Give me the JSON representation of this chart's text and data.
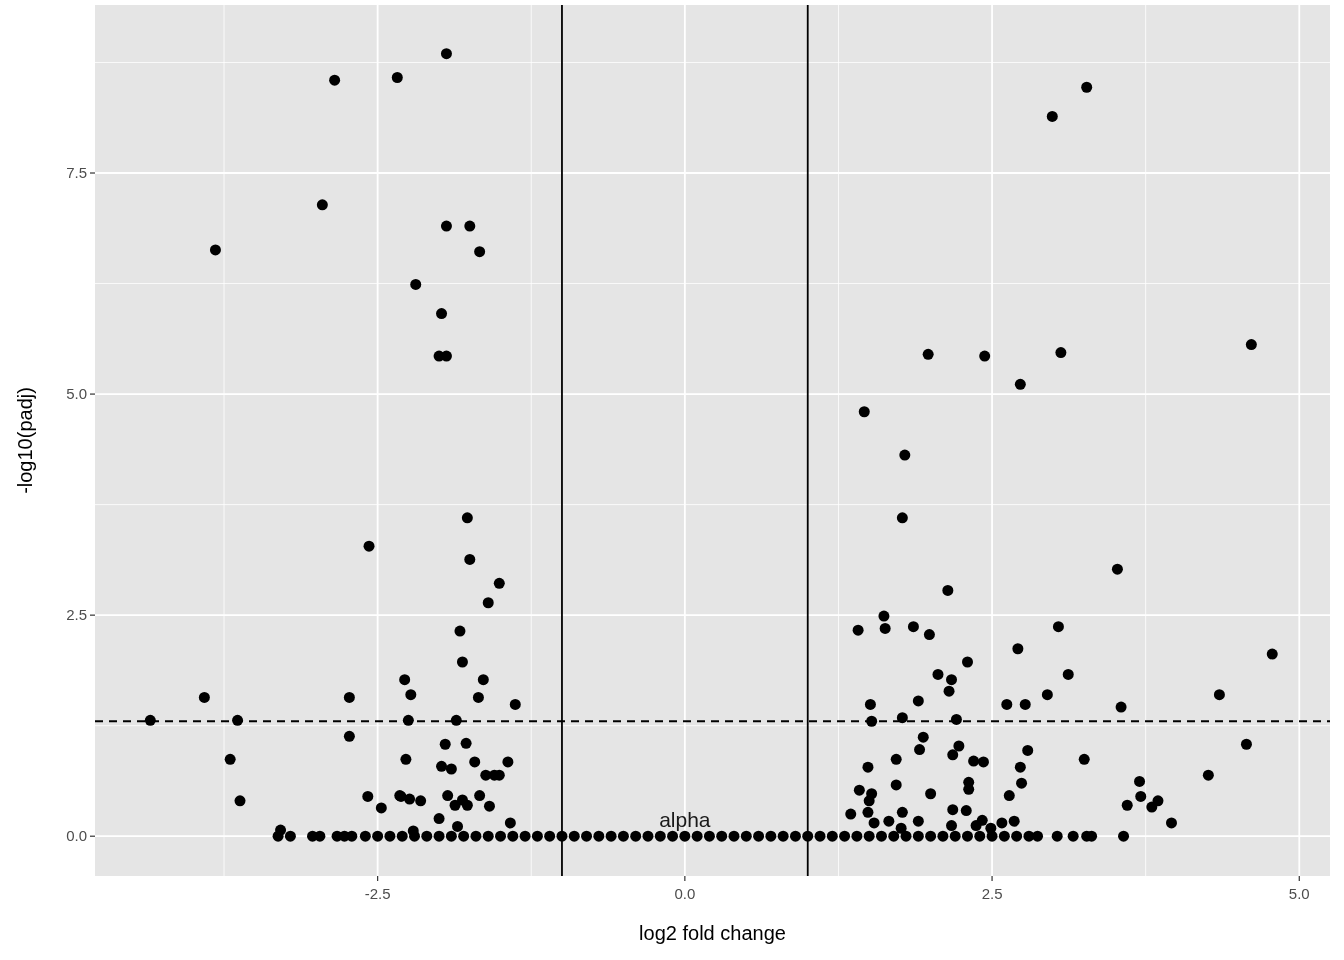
{
  "chart_data": {
    "type": "scatter",
    "xlabel": "log2 fold change",
    "ylabel": "-log10(padj)",
    "x": [
      -1.94,
      -2.85,
      -2.34,
      -2.95,
      -3.82,
      -1.94,
      -1.75,
      -1.67,
      -2.19,
      -1.98,
      -2.0,
      -1.94,
      -1.77,
      -1.75,
      -2.57,
      -1.51,
      -1.6,
      -1.83,
      -1.81,
      -2.28,
      -1.64,
      -2.23,
      -2.73,
      -3.91,
      -1.68,
      -1.38,
      -4.35,
      -3.64,
      -2.25,
      -1.86,
      -2.73,
      -1.95,
      -1.78,
      -3.7,
      -2.27,
      -1.98,
      -1.9,
      -1.71,
      -1.44,
      -1.62,
      -1.55,
      -1.51,
      -2.58,
      -2.31,
      -2.24,
      -2.15,
      -3.62,
      -2.47,
      -1.87,
      -1.81,
      -1.59,
      -1.67,
      -1.77,
      -2.0,
      -1.85,
      -1.42,
      -2.21,
      -3.29,
      -1.93,
      -2.32,
      3.27,
      2.99,
      4.61,
      1.98,
      2.44,
      3.06,
      2.73,
      1.46,
      1.79,
      1.77,
      3.52,
      2.14,
      1.62,
      1.41,
      1.63,
      1.86,
      1.99,
      3.04,
      4.78,
      2.71,
      2.3,
      2.06,
      2.17,
      3.12,
      2.15,
      1.9,
      4.35,
      2.95,
      2.62,
      2.77,
      1.51,
      3.55,
      1.77,
      1.52,
      2.21,
      1.94,
      1.91,
      1.72,
      1.49,
      2.23,
      2.18,
      2.35,
      2.43,
      2.79,
      2.73,
      2.74,
      2.64,
      3.25,
      4.57,
      4.26,
      3.7,
      3.71,
      3.6,
      3.85,
      3.8,
      3.96,
      2.31,
      2.31,
      2.0,
      1.72,
      1.42,
      1.52,
      1.5,
      1.49,
      1.35,
      1.77,
      2.18,
      2.29,
      1.9,
      1.66,
      1.54,
      2.17,
      2.42,
      2.58,
      2.68,
      2.37,
      2.49,
      1.76,
      -3.31,
      -3.21,
      -3.03,
      -2.97,
      -2.83,
      -2.77,
      -2.71,
      -2.6,
      -2.5,
      -2.4,
      -2.3,
      -2.2,
      -2.1,
      -2.0,
      -1.9,
      -1.8,
      -1.7,
      -1.6,
      -1.5,
      -1.4,
      -1.3,
      -1.2,
      -1.1,
      -1.0,
      -0.9,
      -0.8,
      -0.7,
      -0.6,
      -0.5,
      -0.4,
      -0.3,
      -0.2,
      -0.1,
      0,
      0.1,
      0.2,
      0.3,
      0.4,
      0.5,
      0.6,
      0.7,
      0.8,
      0.9,
      1.0,
      1.1,
      1.2,
      1.3,
      1.4,
      1.5,
      1.6,
      1.7,
      1.8,
      1.9,
      2.0,
      2.1,
      2.2,
      2.3,
      2.4,
      2.5,
      2.6,
      2.7,
      2.8,
      2.87,
      3.03,
      3.16,
      3.27,
      3.31,
      3.57
    ],
    "values": [
      8.85,
      8.55,
      8.58,
      7.14,
      6.63,
      6.9,
      6.9,
      6.61,
      6.24,
      5.91,
      5.43,
      5.43,
      3.6,
      3.13,
      3.28,
      2.86,
      2.64,
      2.32,
      1.97,
      1.77,
      1.77,
      1.6,
      1.57,
      1.57,
      1.57,
      1.49,
      1.31,
      1.31,
      1.31,
      1.31,
      1.13,
      1.04,
      1.05,
      0.87,
      0.87,
      0.79,
      0.76,
      0.84,
      0.84,
      0.69,
      0.69,
      0.69,
      0.45,
      0.45,
      0.42,
      0.4,
      0.4,
      0.32,
      0.35,
      0.41,
      0.34,
      0.46,
      0.35,
      0.2,
      0.11,
      0.15,
      0.06,
      0.07,
      0.46,
      0.46,
      8.47,
      8.14,
      5.56,
      5.45,
      5.43,
      5.47,
      5.11,
      4.8,
      4.31,
      3.6,
      3.02,
      2.78,
      2.49,
      2.33,
      2.35,
      2.37,
      2.28,
      2.37,
      2.06,
      2.12,
      1.97,
      1.83,
      1.77,
      1.83,
      1.64,
      1.53,
      1.6,
      1.6,
      1.49,
      1.49,
      1.49,
      1.46,
      1.34,
      1.3,
      1.32,
      1.12,
      0.98,
      0.87,
      0.78,
      1.02,
      0.92,
      0.85,
      0.84,
      0.97,
      0.78,
      0.6,
      0.46,
      0.87,
      1.04,
      0.69,
      0.62,
      0.45,
      0.35,
      0.4,
      0.33,
      0.15,
      0.61,
      0.53,
      0.48,
      0.58,
      0.52,
      0.48,
      0.4,
      0.27,
      0.25,
      0.27,
      0.3,
      0.29,
      0.17,
      0.17,
      0.15,
      0.12,
      0.18,
      0.15,
      0.17,
      0.12,
      0.09,
      0.09,
      0,
      0,
      0,
      0,
      0,
      0,
      0,
      0,
      0,
      0,
      0,
      0,
      0,
      0,
      0,
      0,
      0,
      0,
      0,
      0,
      0,
      0,
      0,
      0,
      0,
      0,
      0,
      0,
      0,
      0,
      0,
      0,
      0,
      0,
      0,
      0,
      0,
      0,
      0,
      0,
      0,
      0,
      0,
      0,
      0,
      0,
      0,
      0,
      0,
      0,
      0,
      0,
      0,
      0,
      0,
      0,
      0,
      0,
      0,
      0,
      0,
      0,
      0,
      0,
      0,
      0,
      0,
      0
    ],
    "color": "#000000",
    "marker": "circle",
    "xlim": [
      -4.8,
      5.25
    ],
    "ylim": [
      -0.45,
      9.4
    ],
    "xticks": [
      -2.5,
      {
        "value": 0,
        "label": "0.0"
      },
      2.5,
      {
        "value": 5,
        "label": "5.0"
      }
    ],
    "yticks": [
      {
        "value": 0,
        "label": "0.0"
      },
      2.5,
      {
        "value": 5,
        "label": "5.0"
      },
      7.5
    ],
    "grid": true,
    "ref_lines": [
      {
        "axis": "x",
        "value": -1,
        "color": "#000000",
        "line_style": "solid"
      },
      {
        "axis": "x",
        "value": 1,
        "color": "#000000",
        "line_style": "solid"
      },
      {
        "axis": "y",
        "value": 1.3,
        "color": "#000000",
        "line_style": "dashed"
      }
    ],
    "annotations": [
      {
        "text": "alpha",
        "x": 0,
        "y": 0
      }
    ]
  }
}
